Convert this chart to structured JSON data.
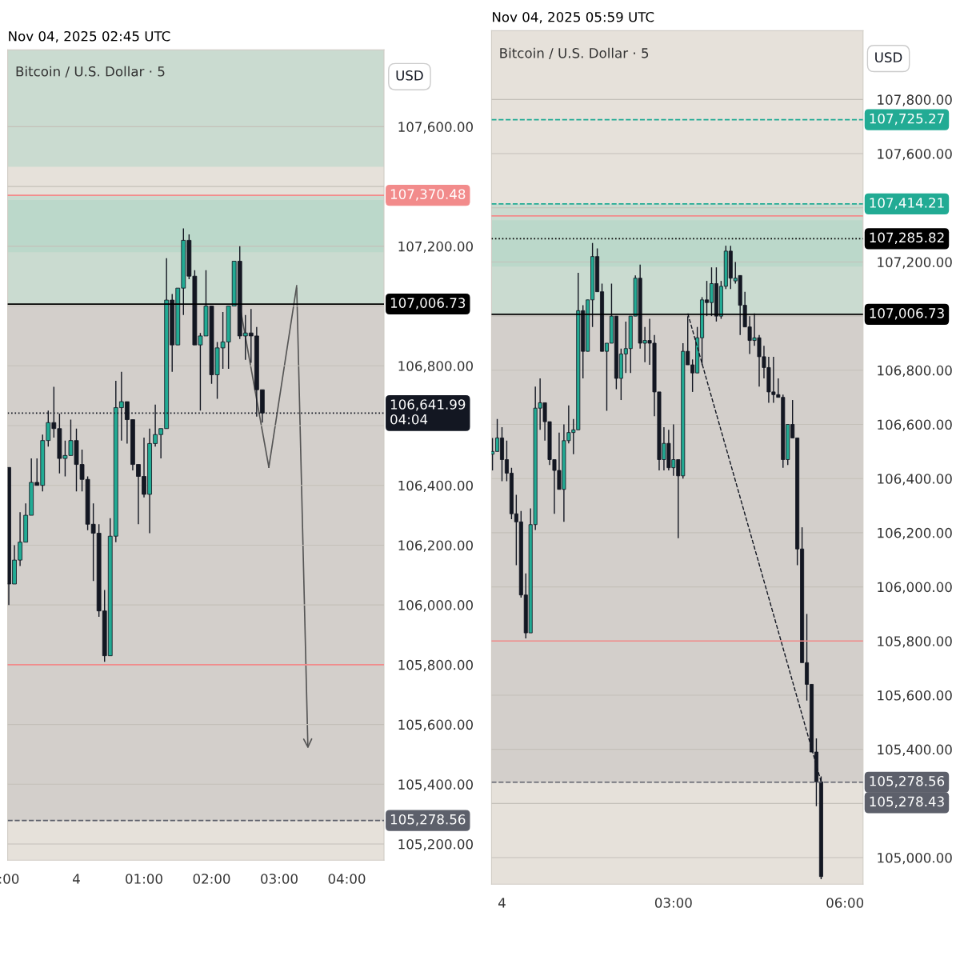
{
  "chart_data": [
    {
      "type": "candlestick",
      "title": "Nov 04, 2025 02:45 UTC",
      "annotations": [
        "Bitcoin / U.S. Dollar · 5",
        "USD"
      ],
      "x": [
        "2025-11-03T23:00",
        "2025-11-03T23:05",
        "2025-11-03T23:10",
        "2025-11-03T23:15",
        "2025-11-03T23:20",
        "2025-11-03T23:25",
        "2025-11-03T23:30",
        "2025-11-03T23:35",
        "2025-11-03T23:40",
        "2025-11-03T23:45",
        "2025-11-03T23:50",
        "2025-11-03T23:55",
        "2025-11-04T00:00",
        "2025-11-04T00:05",
        "2025-11-04T00:10",
        "2025-11-04T00:15",
        "2025-11-04T00:20",
        "2025-11-04T00:25",
        "2025-11-04T00:30",
        "2025-11-04T00:35",
        "2025-11-04T00:40",
        "2025-11-04T00:45",
        "2025-11-04T00:50",
        "2025-11-04T00:55",
        "2025-11-04T01:00",
        "2025-11-04T01:05",
        "2025-11-04T01:10",
        "2025-11-04T01:15",
        "2025-11-04T01:20",
        "2025-11-04T01:25",
        "2025-11-04T01:30",
        "2025-11-04T01:35",
        "2025-11-04T01:40",
        "2025-11-04T01:45",
        "2025-11-04T01:50",
        "2025-11-04T01:55",
        "2025-11-04T02:00",
        "2025-11-04T02:05",
        "2025-11-04T02:10",
        "2025-11-04T02:15",
        "2025-11-04T02:20",
        "2025-11-04T02:25",
        "2025-11-04T02:30",
        "2025-11-04T02:35",
        "2025-11-04T02:40",
        "2025-11-04T02:45"
      ],
      "ohlc": [
        [
          106460,
          106460,
          106000,
          106070
        ],
        [
          106070,
          106200,
          106070,
          106150
        ],
        [
          106150,
          106310,
          106130,
          106210
        ],
        [
          106210,
          106340,
          106210,
          106300
        ],
        [
          106300,
          106490,
          106300,
          106410
        ],
        [
          106410,
          106490,
          106400,
          106400
        ],
        [
          106400,
          106570,
          106380,
          106550
        ],
        [
          106550,
          106650,
          106530,
          106610
        ],
        [
          106610,
          106730,
          106560,
          106590
        ],
        [
          106590,
          106640,
          106440,
          106490
        ],
        [
          106490,
          106550,
          106430,
          106500
        ],
        [
          106500,
          106620,
          106500,
          106550
        ],
        [
          106550,
          106590,
          106380,
          106470
        ],
        [
          106470,
          106520,
          106380,
          106420
        ],
        [
          106420,
          106430,
          106250,
          106270
        ],
        [
          106270,
          106340,
          106080,
          106240
        ],
        [
          106240,
          106270,
          105960,
          105980
        ],
        [
          105980,
          106050,
          105810,
          105830
        ],
        [
          105830,
          106290,
          105830,
          106230
        ],
        [
          106230,
          106750,
          106210,
          106660
        ],
        [
          106660,
          106780,
          106550,
          106680
        ],
        [
          106680,
          106680,
          106540,
          106620
        ],
        [
          106620,
          106620,
          106450,
          106470
        ],
        [
          106470,
          106470,
          106270,
          106430
        ],
        [
          106430,
          106560,
          106360,
          106370
        ],
        [
          106370,
          106590,
          106240,
          106540
        ],
        [
          106540,
          106670,
          106530,
          106570
        ],
        [
          106570,
          106590,
          106490,
          106590
        ],
        [
          106590,
          107160,
          106590,
          107020
        ],
        [
          107020,
          107040,
          106780,
          106870
        ],
        [
          106870,
          107060,
          106870,
          107060
        ],
        [
          107060,
          107260,
          106970,
          107220
        ],
        [
          107220,
          107240,
          107090,
          107100
        ],
        [
          107100,
          107120,
          106870,
          106870
        ],
        [
          106870,
          106910,
          106650,
          106900
        ],
        [
          106900,
          107120,
          106900,
          107000
        ],
        [
          107000,
          107000,
          106740,
          106770
        ],
        [
          106770,
          106880,
          106690,
          106860
        ],
        [
          106860,
          106980,
          106790,
          106880
        ],
        [
          106880,
          107000,
          106790,
          107000
        ],
        [
          107000,
          107150,
          107000,
          107150
        ],
        [
          107150,
          107200,
          106890,
          106900
        ],
        [
          106900,
          106970,
          106820,
          106910
        ],
        [
          106910,
          106990,
          106810,
          106900
        ],
        [
          106900,
          106930,
          106630,
          106720
        ],
        [
          106720,
          106720,
          106610,
          106642
        ]
      ],
      "colors": [
        "#131722",
        "#22ab94",
        "#22ab94",
        "#22ab94",
        "#22ab94",
        "#131722",
        "#22ab94",
        "#22ab94",
        "#131722",
        "#131722",
        "#22ab94",
        "#22ab94",
        "#131722",
        "#131722",
        "#131722",
        "#131722",
        "#131722",
        "#131722",
        "#22ab94",
        "#22ab94",
        "#22ab94",
        "#131722",
        "#131722",
        "#131722",
        "#131722",
        "#22ab94",
        "#22ab94",
        "#22ab94",
        "#22ab94",
        "#131722",
        "#22ab94",
        "#22ab94",
        "#131722",
        "#131722",
        "#22ab94",
        "#22ab94",
        "#131722",
        "#22ab94",
        "#22ab94",
        "#22ab94",
        "#22ab94",
        "#131722",
        "#22ab94",
        "#131722",
        "#131722",
        "#131722"
      ],
      "xlim": [
        "2025-11-03T22:59",
        "2025-11-04T04:33"
      ],
      "xticks": [
        {
          "value": "2025-11-03T23:00",
          "label": ":00"
        },
        {
          "value": "2025-11-04T00:00",
          "label": "4"
        },
        {
          "value": "2025-11-04T01:00",
          "label": "01:00"
        },
        {
          "value": "2025-11-04T02:00",
          "label": "02:00"
        },
        {
          "value": "2025-11-04T03:00",
          "label": "03:00"
        },
        {
          "value": "2025-11-04T04:00",
          "label": "04:00"
        }
      ],
      "ylim": [
        105146,
        107857
      ],
      "yticks": [
        {
          "value": 105200,
          "label": "105,200.00"
        },
        {
          "value": 105400,
          "label": "105,400.00"
        },
        {
          "value": 105600,
          "label": "105,600.00"
        },
        {
          "value": 105800,
          "label": "105,800.00"
        },
        {
          "value": 106000,
          "label": "106,000.00"
        },
        {
          "value": 106200,
          "label": "106,200.00"
        },
        {
          "value": 106400,
          "label": "106,400.00"
        },
        {
          "value": 106600,
          "label": null
        },
        {
          "value": 106800,
          "label": "106,800.00"
        },
        {
          "value": 107000,
          "label": null
        },
        {
          "value": 107200,
          "label": "107,200.00"
        },
        {
          "value": 107400,
          "label": null
        },
        {
          "value": 107600,
          "label": "107,600.00"
        }
      ],
      "grid": "y",
      "ref_lines": [
        {
          "axis": "y",
          "value": 107370.48,
          "label": "107,370.48",
          "color": "#f28b8b",
          "line_style": "solid"
        },
        {
          "axis": "y",
          "value": 105800,
          "label": null,
          "color": "#f28b8b",
          "line_style": "solid"
        },
        {
          "axis": "y",
          "value": 107006.73,
          "label": "107,006.73",
          "color": "#000000",
          "line_style": "solid"
        },
        {
          "axis": "y",
          "value": 106641.99,
          "label": "106,641.99\n04:04",
          "color": "#131722",
          "line_style": "dotted"
        },
        {
          "axis": "y",
          "value": 105278.56,
          "label": "105,278.56",
          "color": "#5d606b",
          "line_style": "dashed"
        }
      ],
      "bands": [
        {
          "axis": "y",
          "from": 107180,
          "to": 107355,
          "label": null,
          "color": "#a8d5c3"
        },
        {
          "axis": "y",
          "from": 107466,
          "to": 107857,
          "label": null,
          "color": "#a8d5c3"
        },
        {
          "axis": "y",
          "from": 107006.73,
          "to": 107370.48,
          "label": null,
          "color": "#a8d5c3"
        },
        {
          "axis": "y",
          "from": 105278.56,
          "to": 107006.73,
          "label": null,
          "color": "#bdbab7"
        }
      ]
    },
    {
      "type": "candlestick",
      "title": "Nov 04, 2025 05:59 UTC",
      "annotations": [
        "Bitcoin / U.S. Dollar · 5",
        "USD",
        "105,278.43"
      ],
      "x": [
        "2025-11-03T23:50",
        "2025-11-03T23:55",
        "2025-11-04T00:00",
        "2025-11-04T00:05",
        "2025-11-04T00:10",
        "2025-11-04T00:15",
        "2025-11-04T00:20",
        "2025-11-04T00:25",
        "2025-11-04T00:30",
        "2025-11-04T00:35",
        "2025-11-04T00:40",
        "2025-11-04T00:45",
        "2025-11-04T00:50",
        "2025-11-04T00:55",
        "2025-11-04T01:00",
        "2025-11-04T01:05",
        "2025-11-04T01:10",
        "2025-11-04T01:15",
        "2025-11-04T01:20",
        "2025-11-04T01:25",
        "2025-11-04T01:30",
        "2025-11-04T01:35",
        "2025-11-04T01:40",
        "2025-11-04T01:45",
        "2025-11-04T01:50",
        "2025-11-04T01:55",
        "2025-11-04T02:00",
        "2025-11-04T02:05",
        "2025-11-04T02:10",
        "2025-11-04T02:15",
        "2025-11-04T02:20",
        "2025-11-04T02:25",
        "2025-11-04T02:30",
        "2025-11-04T02:35",
        "2025-11-04T02:40",
        "2025-11-04T02:45",
        "2025-11-04T02:50",
        "2025-11-04T02:55",
        "2025-11-04T03:00",
        "2025-11-04T03:05",
        "2025-11-04T03:10",
        "2025-11-04T03:15",
        "2025-11-04T03:20",
        "2025-11-04T03:25",
        "2025-11-04T03:30",
        "2025-11-04T03:35",
        "2025-11-04T03:40",
        "2025-11-04T03:45",
        "2025-11-04T03:50",
        "2025-11-04T03:55",
        "2025-11-04T04:00",
        "2025-11-04T04:05",
        "2025-11-04T04:10",
        "2025-11-04T04:15",
        "2025-11-04T04:20",
        "2025-11-04T04:25",
        "2025-11-04T04:30",
        "2025-11-04T04:35",
        "2025-11-04T04:40",
        "2025-11-04T04:45",
        "2025-11-04T04:50",
        "2025-11-04T04:55",
        "2025-11-04T05:00",
        "2025-11-04T05:05",
        "2025-11-04T05:10",
        "2025-11-04T05:15",
        "2025-11-04T05:20",
        "2025-11-04T05:25",
        "2025-11-04T05:30",
        "2025-11-04T05:35"
      ],
      "series": [
        {
          "type": "line",
          "x": [
            "2025-11-04T03:15",
            "2025-11-04T05:35"
          ],
          "values": [
            107010,
            105280
          ],
          "color": "#131722",
          "line_style": "dashed"
        }
      ],
      "ohlc": [
        [
          106490,
          106550,
          106430,
          106500
        ],
        [
          106500,
          106620,
          106500,
          106550
        ],
        [
          106550,
          106590,
          106390,
          106470
        ],
        [
          106470,
          106540,
          106390,
          106420
        ],
        [
          106420,
          106440,
          106250,
          106270
        ],
        [
          106270,
          106340,
          106080,
          106240
        ],
        [
          106240,
          106280,
          105960,
          105970
        ],
        [
          105970,
          106050,
          105810,
          105830
        ],
        [
          105830,
          106290,
          105830,
          106230
        ],
        [
          106230,
          106740,
          106210,
          106660
        ],
        [
          106660,
          106770,
          106580,
          106680
        ],
        [
          106680,
          106680,
          106540,
          106610
        ],
        [
          106610,
          106610,
          106450,
          106470
        ],
        [
          106470,
          106470,
          106270,
          106430
        ],
        [
          106430,
          106570,
          106360,
          106360
        ],
        [
          106360,
          106600,
          106240,
          106540
        ],
        [
          106540,
          106670,
          106530,
          106570
        ],
        [
          106570,
          106620,
          106490,
          106580
        ],
        [
          106580,
          107160,
          106580,
          107020
        ],
        [
          107020,
          107040,
          106770,
          106870
        ],
        [
          106870,
          107060,
          106870,
          107060
        ],
        [
          107060,
          107270,
          106960,
          107220
        ],
        [
          107220,
          107250,
          107090,
          107090
        ],
        [
          107090,
          107120,
          106870,
          106870
        ],
        [
          106870,
          106900,
          106650,
          106900
        ],
        [
          106900,
          107120,
          106900,
          107000
        ],
        [
          107000,
          107000,
          106730,
          106770
        ],
        [
          106770,
          106880,
          106690,
          106860
        ],
        [
          106860,
          106980,
          106790,
          106880
        ],
        [
          106880,
          107000,
          106790,
          107000
        ],
        [
          107000,
          107150,
          107000,
          107140
        ],
        [
          107140,
          107190,
          106880,
          106900
        ],
        [
          106900,
          106960,
          106830,
          106910
        ],
        [
          106910,
          106990,
          106820,
          106900
        ],
        [
          106900,
          106930,
          106630,
          106720
        ],
        [
          106720,
          106720,
          106430,
          106470
        ],
        [
          106470,
          106590,
          106430,
          106530
        ],
        [
          106530,
          106580,
          106430,
          106440
        ],
        [
          106440,
          106600,
          106410,
          106470
        ],
        [
          106470,
          106470,
          106180,
          106410
        ],
        [
          106410,
          106900,
          106400,
          106870
        ],
        [
          106870,
          107000,
          106820,
          106820
        ],
        [
          106820,
          106840,
          106720,
          106790
        ],
        [
          106790,
          106960,
          106790,
          106920
        ],
        [
          106920,
          107070,
          106820,
          107060
        ],
        [
          107060,
          107130,
          107000,
          107050
        ],
        [
          107050,
          107180,
          107000,
          107120
        ],
        [
          107120,
          107180,
          106980,
          107000
        ],
        [
          107000,
          107130,
          106990,
          107110
        ],
        [
          107110,
          107260,
          107100,
          107240
        ],
        [
          107240,
          107260,
          107100,
          107140
        ],
        [
          107130,
          107200,
          107120,
          107140
        ],
        [
          107150,
          107150,
          106930,
          107040
        ],
        [
          107040,
          107090,
          106960,
          106960
        ],
        [
          106960,
          107000,
          106860,
          106910
        ],
        [
          106910,
          107010,
          106890,
          106920
        ],
        [
          106920,
          106930,
          106740,
          106850
        ],
        [
          106850,
          106890,
          106770,
          106810
        ],
        [
          106810,
          106850,
          106680,
          106720
        ],
        [
          106720,
          106850,
          106680,
          106710
        ],
        [
          106710,
          106770,
          106700,
          106700
        ],
        [
          106700,
          106710,
          106440,
          106470
        ],
        [
          106470,
          106600,
          106450,
          106600
        ],
        [
          106600,
          106690,
          106550,
          106550
        ],
        [
          106550,
          106550,
          106080,
          106140
        ],
        [
          106140,
          106220,
          105720,
          105720
        ],
        [
          105720,
          105900,
          105580,
          105640
        ],
        [
          105640,
          105640,
          105390,
          105390
        ],
        [
          105390,
          105440,
          105190,
          105280
        ],
        [
          105280,
          105300,
          104920,
          104930
        ]
      ],
      "colors": [
        "#22ab94",
        "#22ab94",
        "#131722",
        "#131722",
        "#131722",
        "#131722",
        "#131722",
        "#131722",
        "#22ab94",
        "#22ab94",
        "#22ab94",
        "#131722",
        "#131722",
        "#131722",
        "#131722",
        "#22ab94",
        "#22ab94",
        "#22ab94",
        "#22ab94",
        "#131722",
        "#22ab94",
        "#22ab94",
        "#131722",
        "#131722",
        "#22ab94",
        "#22ab94",
        "#131722",
        "#22ab94",
        "#22ab94",
        "#22ab94",
        "#22ab94",
        "#131722",
        "#22ab94",
        "#131722",
        "#131722",
        "#131722",
        "#22ab94",
        "#131722",
        "#22ab94",
        "#131722",
        "#22ab94",
        "#131722",
        "#131722",
        "#22ab94",
        "#22ab94",
        "#131722",
        "#22ab94",
        "#131722",
        "#22ab94",
        "#22ab94",
        "#131722",
        "#22ab94",
        "#131722",
        "#131722",
        "#131722",
        "#22ab94",
        "#131722",
        "#131722",
        "#131722",
        "#131722",
        "#131722",
        "#131722",
        "#22ab94",
        "#131722",
        "#131722",
        "#131722",
        "#131722",
        "#131722",
        "#131722",
        "#131722"
      ],
      "xlim": [
        "2025-11-03T23:49",
        "2025-11-04T06:19"
      ],
      "xticks": [
        {
          "value": "2025-11-04T00:00",
          "label": "4"
        },
        {
          "value": "2025-11-04T03:00",
          "label": "03:00"
        },
        {
          "value": "2025-11-04T06:00",
          "label": "06:00"
        }
      ],
      "ylim": [
        104902,
        108054
      ],
      "yticks": [
        {
          "value": 105000,
          "label": "105,000.00"
        },
        {
          "value": 105200,
          "label": null
        },
        {
          "value": 105400,
          "label": "105,400.00"
        },
        {
          "value": 105600,
          "label": "105,600.00"
        },
        {
          "value": 105800,
          "label": "105,800.00"
        },
        {
          "value": 106000,
          "label": "106,000.00"
        },
        {
          "value": 106200,
          "label": "106,200.00"
        },
        {
          "value": 106400,
          "label": "106,400.00"
        },
        {
          "value": 106600,
          "label": "106,600.00"
        },
        {
          "value": 106800,
          "label": "106,800.00"
        },
        {
          "value": 107000,
          "label": null
        },
        {
          "value": 107200,
          "label": "107,200.00"
        },
        {
          "value": 107400,
          "label": null
        },
        {
          "value": 107600,
          "label": "107,600.00"
        },
        {
          "value": 107800,
          "label": "107,800.00"
        }
      ],
      "grid": "y",
      "ref_lines": [
        {
          "axis": "y",
          "value": 107370,
          "label": null,
          "color": "#f28b8b",
          "line_style": "solid"
        },
        {
          "axis": "y",
          "value": 105800,
          "label": null,
          "color": "#f28b8b",
          "line_style": "solid"
        },
        {
          "axis": "y",
          "value": 107725.27,
          "label": "107,725.27",
          "color": "#22ab94",
          "line_style": "dashed"
        },
        {
          "axis": "y",
          "value": 107414.21,
          "label": "107,414.21",
          "color": "#22ab94",
          "line_style": "dashed"
        },
        {
          "axis": "y",
          "value": 107285.82,
          "label": "107,285.82",
          "color": "#000000",
          "line_style": "dotted"
        },
        {
          "axis": "y",
          "value": 107006.73,
          "label": "107,006.73",
          "color": "#000000",
          "line_style": "solid"
        },
        {
          "axis": "y",
          "value": 105278.56,
          "label": "105,278.56",
          "color": "#5d606b",
          "line_style": "dashed"
        }
      ],
      "bands": [
        {
          "axis": "y",
          "from": 107183,
          "to": 107354,
          "label": null,
          "color": "#a8d5c3"
        },
        {
          "axis": "y",
          "from": 107006.73,
          "to": 107414.21,
          "label": null,
          "color": "#a8d5c3"
        },
        {
          "axis": "y",
          "from": 105278.56,
          "to": 107006.73,
          "label": null,
          "color": "#bdbab7"
        }
      ]
    }
  ]
}
